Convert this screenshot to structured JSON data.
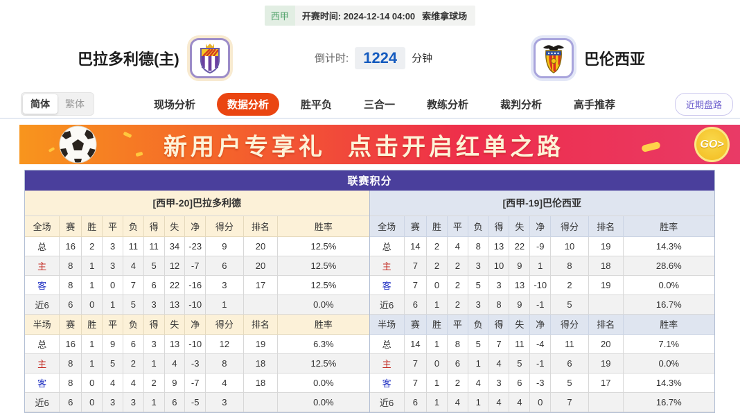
{
  "match_bar": {
    "league_badge": "西甲",
    "kickoff_label": "开赛时间:",
    "kickoff_time": "2024-12-14 04:00",
    "venue": "索维拿球场"
  },
  "header": {
    "home_team": "巴拉多利德(主)",
    "away_team": "巴伦西亚",
    "home_logo": "valladolid-crest",
    "away_logo": "valencia-crest",
    "countdown_label": "倒计时:",
    "countdown_value": "1224",
    "countdown_unit": "分钟"
  },
  "nav": {
    "lang_simplified": "简体",
    "lang_traditional": "繁体",
    "items": [
      "现场分析",
      "数据分析",
      "胜平负",
      "三合一",
      "教练分析",
      "裁判分析",
      "高手推荐"
    ],
    "active_item": "数据分析",
    "recent_button": "近期盘路"
  },
  "banner": {
    "text_left": "新用户专享礼",
    "text_right": "点击开启红单之路",
    "go_label": "GO>",
    "ball_icon": "soccer-ball"
  },
  "table": {
    "title": "联赛积分",
    "left": {
      "team_header": "[西甲-20]巴拉多利德",
      "full_header": [
        "全场",
        "赛",
        "胜",
        "平",
        "负",
        "得",
        "失",
        "净",
        "得分",
        "排名",
        "胜率"
      ],
      "full_rows": [
        [
          "总",
          "16",
          "2",
          "3",
          "11",
          "11",
          "34",
          "-23",
          "9",
          "20",
          "12.5%"
        ],
        [
          "主",
          "8",
          "1",
          "3",
          "4",
          "5",
          "12",
          "-7",
          "6",
          "20",
          "12.5%"
        ],
        [
          "客",
          "8",
          "1",
          "0",
          "7",
          "6",
          "22",
          "-16",
          "3",
          "17",
          "12.5%"
        ],
        [
          "近6",
          "6",
          "0",
          "1",
          "5",
          "3",
          "13",
          "-10",
          "1",
          "",
          "0.0%"
        ]
      ],
      "half_header": [
        "半场",
        "赛",
        "胜",
        "平",
        "负",
        "得",
        "失",
        "净",
        "得分",
        "排名",
        "胜率"
      ],
      "half_rows": [
        [
          "总",
          "16",
          "1",
          "9",
          "6",
          "3",
          "13",
          "-10",
          "12",
          "19",
          "6.3%"
        ],
        [
          "主",
          "8",
          "1",
          "5",
          "2",
          "1",
          "4",
          "-3",
          "8",
          "18",
          "12.5%"
        ],
        [
          "客",
          "8",
          "0",
          "4",
          "4",
          "2",
          "9",
          "-7",
          "4",
          "18",
          "0.0%"
        ],
        [
          "近6",
          "6",
          "0",
          "3",
          "3",
          "1",
          "6",
          "-5",
          "3",
          "",
          "0.0%"
        ]
      ]
    },
    "right": {
      "team_header": "[西甲-19]巴伦西亚",
      "full_header": [
        "全场",
        "赛",
        "胜",
        "平",
        "负",
        "得",
        "失",
        "净",
        "得分",
        "排名",
        "胜率"
      ],
      "full_rows": [
        [
          "总",
          "14",
          "2",
          "4",
          "8",
          "13",
          "22",
          "-9",
          "10",
          "19",
          "14.3%"
        ],
        [
          "主",
          "7",
          "2",
          "2",
          "3",
          "10",
          "9",
          "1",
          "8",
          "18",
          "28.6%"
        ],
        [
          "客",
          "7",
          "0",
          "2",
          "5",
          "3",
          "13",
          "-10",
          "2",
          "19",
          "0.0%"
        ],
        [
          "近6",
          "6",
          "1",
          "2",
          "3",
          "8",
          "9",
          "-1",
          "5",
          "",
          "16.7%"
        ]
      ],
      "half_header": [
        "半场",
        "赛",
        "胜",
        "平",
        "负",
        "得",
        "失",
        "净",
        "得分",
        "排名",
        "胜率"
      ],
      "half_rows": [
        [
          "总",
          "14",
          "1",
          "8",
          "5",
          "7",
          "11",
          "-4",
          "11",
          "20",
          "7.1%"
        ],
        [
          "主",
          "7",
          "0",
          "6",
          "1",
          "4",
          "5",
          "-1",
          "6",
          "19",
          "0.0%"
        ],
        [
          "客",
          "7",
          "1",
          "2",
          "4",
          "3",
          "6",
          "-3",
          "5",
          "17",
          "14.3%"
        ],
        [
          "近6",
          "6",
          "1",
          "4",
          "1",
          "4",
          "4",
          "0",
          "7",
          "",
          "16.7%"
        ]
      ]
    }
  },
  "colors": {
    "accent_purple": "#4a3f9c",
    "active_tab_orange": "#ea4511",
    "countdown_blue": "#155bbf",
    "league_green": "#4c9f66",
    "home_row_red": "#c32a22",
    "away_row_blue": "#2333c3",
    "left_header_cream": "#fcf1d8",
    "right_header_gray": "#dfe5f0",
    "banner_orange": "#f8951d",
    "banner_pink": "#e93a66"
  }
}
